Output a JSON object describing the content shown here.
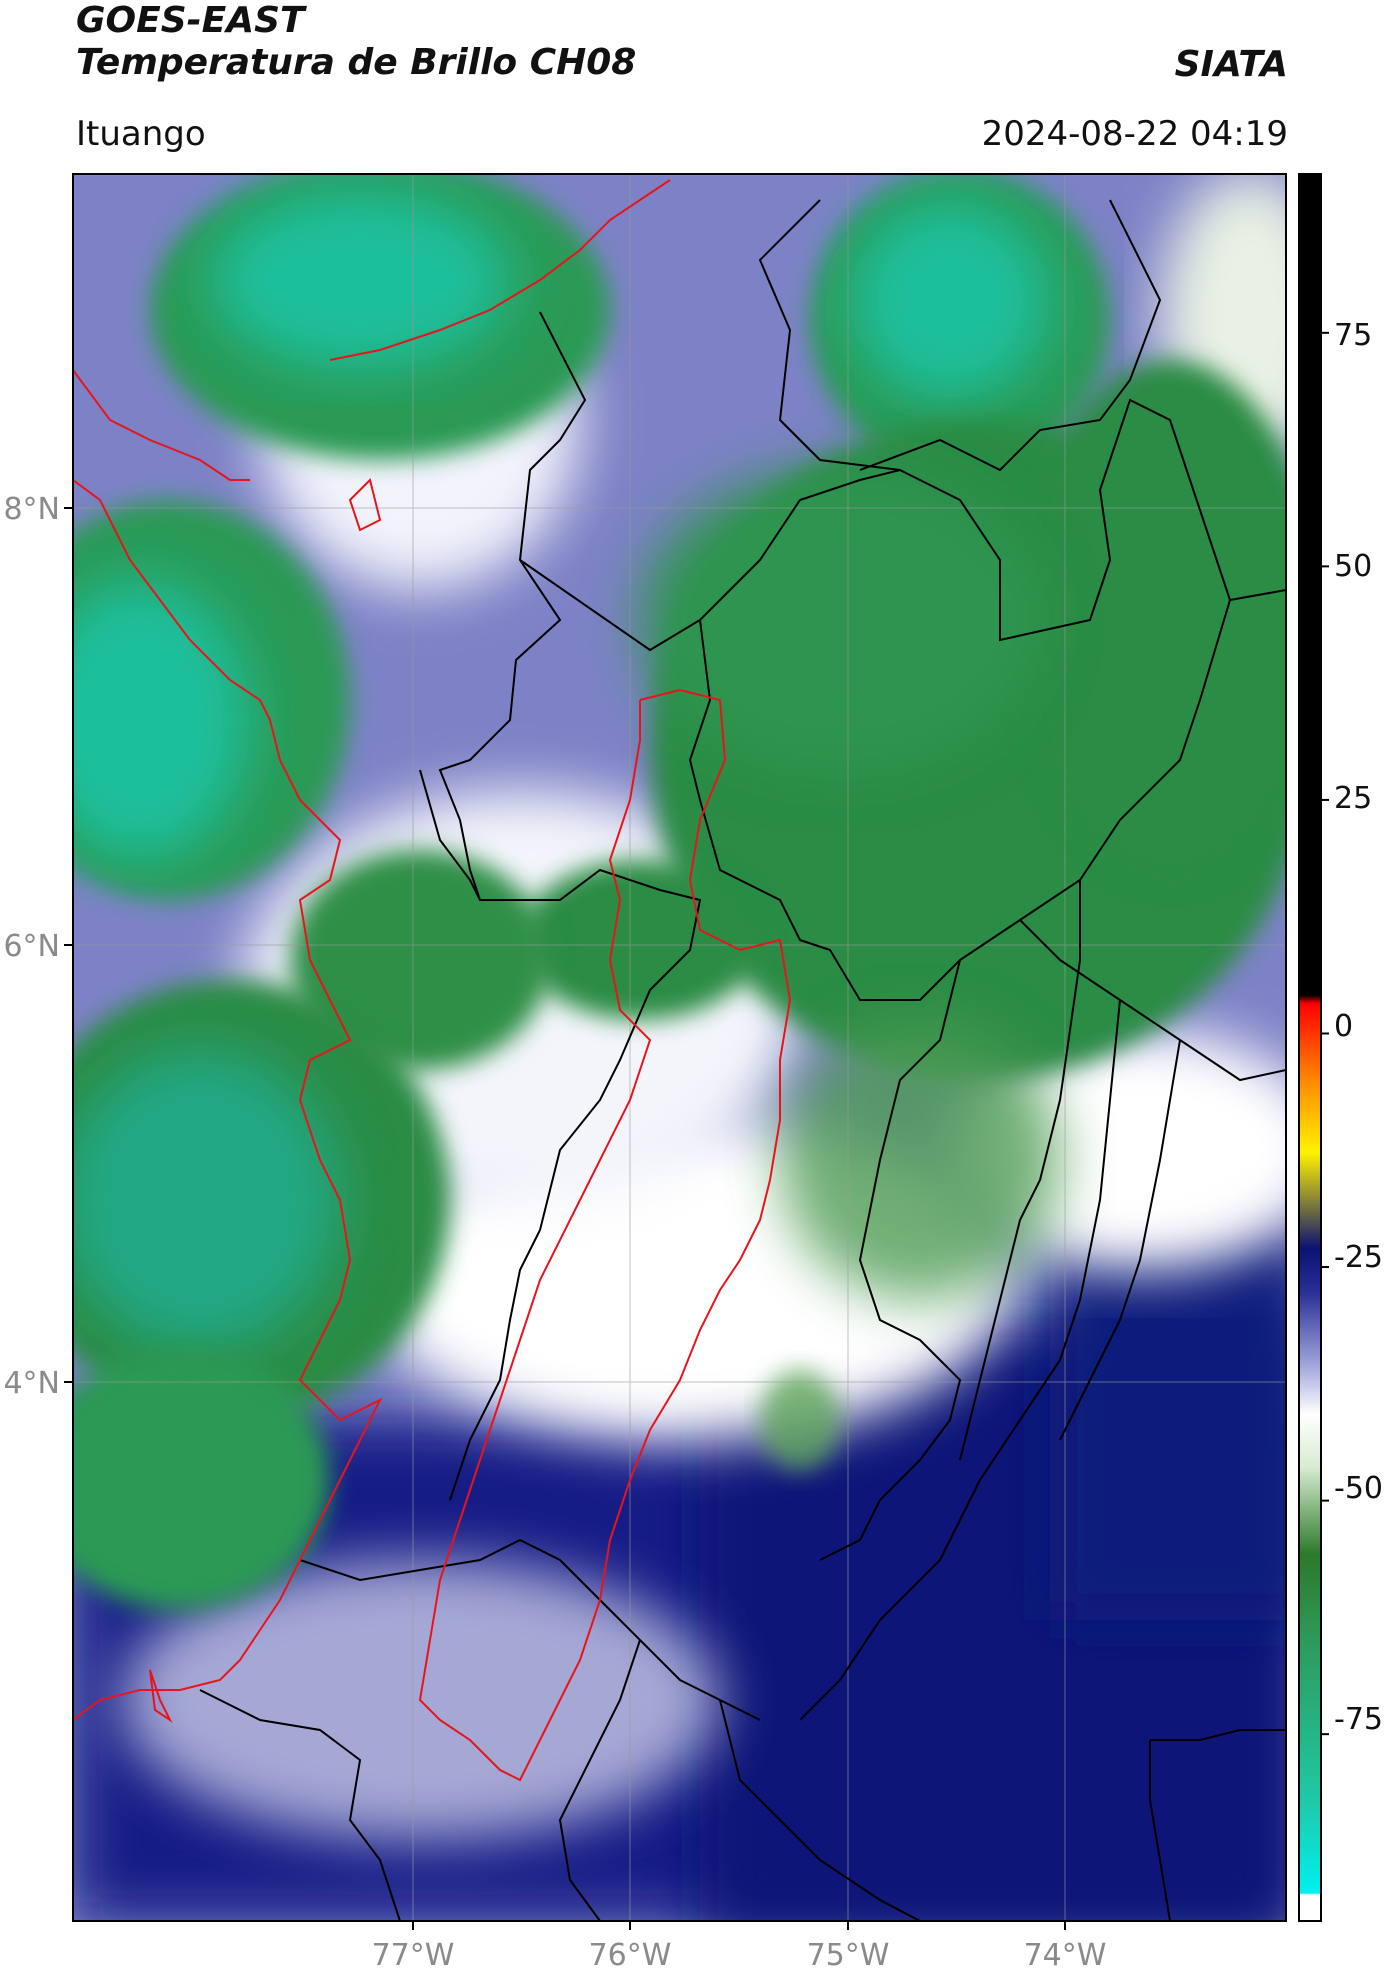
{
  "header": {
    "satellite": "GOES-EAST",
    "product": "Temperatura de Brillo CH08",
    "org": "SIATA",
    "region": "Ituango",
    "datetime": "2024-08-22 04:19"
  },
  "map": {
    "lon_range": [
      -78.5,
      -73.0
    ],
    "lat_range": [
      1.0,
      9.5
    ],
    "lon_ticks": [
      {
        "value": -77,
        "label": "77°W"
      },
      {
        "value": -76,
        "label": "76°W"
      },
      {
        "value": -75,
        "label": "75°W"
      },
      {
        "value": -74,
        "label": "74°W"
      }
    ],
    "lat_ticks": [
      {
        "value": 8,
        "label": "8°N"
      },
      {
        "value": 6,
        "label": "6°N"
      },
      {
        "value": 4,
        "label": "4°N"
      }
    ],
    "colors": {
      "cold_cloud": "#2b9a55",
      "coldest_core": "#1fc8a6",
      "mid_cloud": "#ffffff",
      "warm_cloud": "#7b80c4",
      "warmest": "#0a1778",
      "coast_line": "#e8141c",
      "admin_line": "#000000"
    }
  },
  "colorbar": {
    "range": [
      -95,
      92
    ],
    "ticks": [
      {
        "value": 75,
        "label": "75"
      },
      {
        "value": 50,
        "label": "50"
      },
      {
        "value": 25,
        "label": "25"
      },
      {
        "value": 0,
        "label": "0"
      },
      {
        "value": -25,
        "label": "-25"
      },
      {
        "value": -50,
        "label": "-50"
      },
      {
        "value": -75,
        "label": "-75"
      }
    ]
  }
}
